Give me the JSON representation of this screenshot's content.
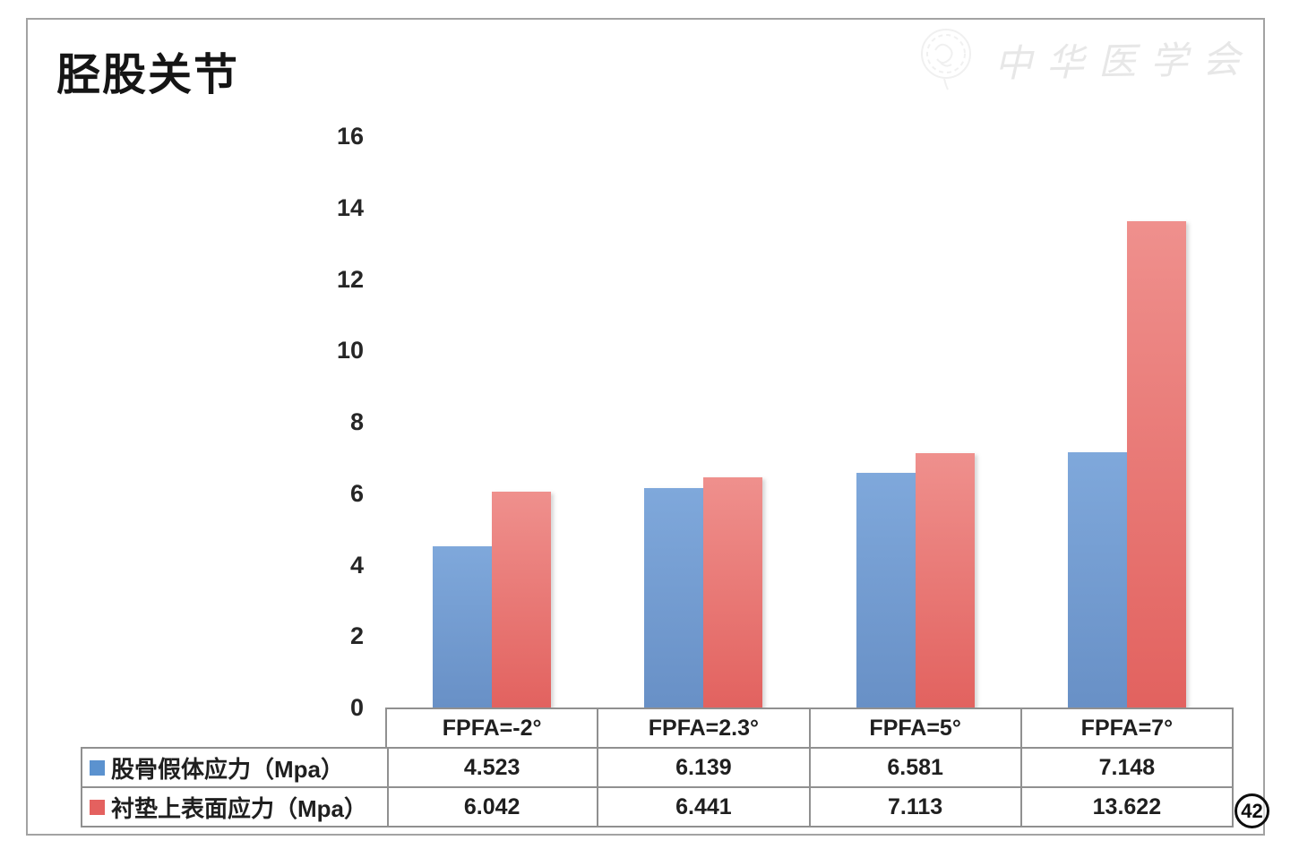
{
  "slide": {
    "title": "胫股关节",
    "page_number": "42",
    "watermark_text": "中华医学会"
  },
  "chart_data": {
    "type": "bar",
    "title": "",
    "xlabel": "",
    "ylabel": "",
    "categories": [
      "FPFA=-2°",
      "FPFA=2.3°",
      "FPFA=5°",
      "FPFA=7°"
    ],
    "series": [
      {
        "name": "股骨假体应力（Mpa）",
        "color": "#5b92cf",
        "gradient_top": "#7fa8db",
        "gradient_bottom": "#6890c6",
        "values": [
          4.523,
          6.139,
          6.581,
          7.148
        ]
      },
      {
        "name": "衬垫上表面应力（Mpa）",
        "color": "#e4615f",
        "gradient_top": "#ef908d",
        "gradient_bottom": "#e2625f",
        "values": [
          6.042,
          6.441,
          7.113,
          13.622
        ]
      }
    ],
    "ylim": [
      0,
      16
    ],
    "yticks": [
      0,
      2,
      4,
      6,
      8,
      10,
      12,
      14,
      16
    ],
    "grid": false,
    "legend_position": "table-left",
    "data_table_shown": true
  }
}
